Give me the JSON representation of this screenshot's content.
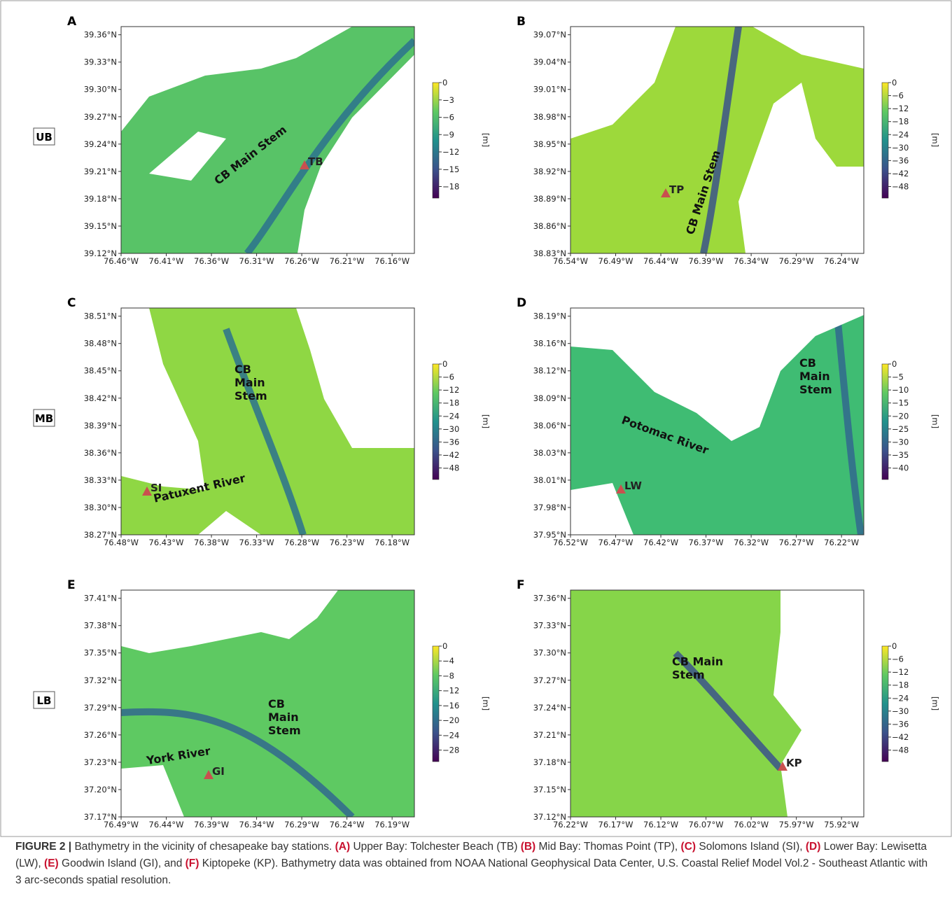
{
  "panels": [
    {
      "letter": "A",
      "region": "UB",
      "station": "TB",
      "xticks": [
        "76.46°W",
        "76.41°W",
        "76.36°W",
        "76.31°W",
        "76.26°W",
        "76.21°W",
        "76.16°W"
      ],
      "yticks": [
        "39.12°N",
        "39.15°N",
        "39.18°N",
        "39.21°N",
        "39.24°N",
        "39.27°N",
        "39.30°N",
        "39.33°N",
        "39.36°N"
      ],
      "colorbar_ticks": [
        "0",
        "−3",
        "−6",
        "−9",
        "−12",
        "−15",
        "−18"
      ],
      "colorbar_label": "[m]",
      "annotations": [
        [
          "CB Main Stem"
        ]
      ]
    },
    {
      "letter": "B",
      "station": "TP",
      "xticks": [
        "76.54°W",
        "76.49°W",
        "76.44°W",
        "76.39°W",
        "76.34°W",
        "76.29°W",
        "76.24°W"
      ],
      "yticks": [
        "38.83°N",
        "38.86°N",
        "38.89°N",
        "38.92°N",
        "38.95°N",
        "38.98°N",
        "39.01°N",
        "39.04°N",
        "39.07°N"
      ],
      "colorbar_ticks": [
        "0",
        "−6",
        "−12",
        "−18",
        "−24",
        "−30",
        "−36",
        "−42",
        "−48"
      ],
      "colorbar_label": "[m]",
      "annotations": [
        [
          "CB Main Stem"
        ]
      ]
    },
    {
      "letter": "C",
      "region": "MB",
      "station": "SI",
      "xticks": [
        "76.48°W",
        "76.43°W",
        "76.38°W",
        "76.33°W",
        "76.28°W",
        "76.23°W",
        "76.18°W"
      ],
      "yticks": [
        "38.27°N",
        "38.30°N",
        "38.33°N",
        "38.36°N",
        "38.39°N",
        "38.42°N",
        "38.45°N",
        "38.48°N",
        "38.51°N"
      ],
      "colorbar_ticks": [
        "0",
        "−6",
        "−12",
        "−18",
        "−24",
        "−30",
        "−36",
        "−42",
        "−48"
      ],
      "colorbar_label": "[m]",
      "annotations": [
        [
          "CB",
          "Main",
          "Stem"
        ],
        [
          "Patuxent River"
        ]
      ]
    },
    {
      "letter": "D",
      "station": "LW",
      "xticks": [
        "76.52°W",
        "76.47°W",
        "76.42°W",
        "76.37°W",
        "76.32°W",
        "76.27°W",
        "76.22°W"
      ],
      "yticks": [
        "37.95°N",
        "37.98°N",
        "38.01°N",
        "38.03°N",
        "38.06°N",
        "38.09°N",
        "38.12°N",
        "38.16°N",
        "38.19°N"
      ],
      "colorbar_ticks": [
        "0",
        "−5",
        "−10",
        "−15",
        "−20",
        "−25",
        "−30",
        "−35",
        "−40"
      ],
      "colorbar_label": "[m]",
      "annotations": [
        [
          "CB",
          "Main",
          "Stem"
        ],
        [
          "Potomac River"
        ]
      ]
    },
    {
      "letter": "E",
      "region": "LB",
      "station": "GI",
      "xticks": [
        "76.49°W",
        "76.44°W",
        "76.39°W",
        "76.34°W",
        "76.29°W",
        "76.24°W",
        "76.19°W"
      ],
      "yticks": [
        "37.17°N",
        "37.20°N",
        "37.23°N",
        "37.26°N",
        "37.29°N",
        "37.32°N",
        "37.35°N",
        "37.38°N",
        "37.41°N"
      ],
      "colorbar_ticks": [
        "0",
        "−4",
        "−8",
        "−12",
        "−16",
        "−20",
        "−24",
        "−28"
      ],
      "colorbar_label": "[m]",
      "annotations": [
        [
          "York River"
        ],
        [
          "CB",
          "Main",
          "Stem"
        ]
      ]
    },
    {
      "letter": "F",
      "station": "KP",
      "xticks": [
        "76.22°W",
        "76.17°W",
        "76.12°W",
        "76.07°W",
        "76.02°W",
        "75.97°W",
        "75.92°W"
      ],
      "yticks": [
        "37.12°N",
        "37.15°N",
        "37.18°N",
        "37.21°N",
        "37.24°N",
        "37.27°N",
        "37.30°N",
        "37.33°N",
        "37.36°N"
      ],
      "colorbar_ticks": [
        "0",
        "−6",
        "−12",
        "−18",
        "−24",
        "−30",
        "−36",
        "−42",
        "−48"
      ],
      "colorbar_label": "[m]",
      "annotations": [
        [
          "CB Main",
          "Stem"
        ]
      ]
    }
  ],
  "caption": [
    {
      "text": "FIGURE 2 |",
      "bold": true
    },
    {
      "text": " Bathymetry in the vicinity of chesapeake bay stations. "
    },
    {
      "text": "(A)",
      "bold": true
    },
    {
      "text": " Upper Bay: Tolchester Beach (TB) "
    },
    {
      "text": "(B)",
      "bold": true
    },
    {
      "text": " Mid Bay: Thomas Point (TP), "
    },
    {
      "text": "(C)",
      "bold": true
    },
    {
      "text": " Solomons Island (SI), "
    },
    {
      "text": "(D)",
      "bold": true
    },
    {
      "text": " Lower Bay: Lewisetta (LW), "
    },
    {
      "text": "(E)",
      "bold": true
    },
    {
      "text": " Goodwin Island (GI), and "
    },
    {
      "text": "(F)",
      "bold": true
    },
    {
      "text": " Kiptopeke (KP). Bathymetry data was obtained from NOAA National Geophysical Data Center, U.S. Coastal Relief Model Vol.2 - Southeast Atlantic with 3 arc-seconds spatial resolution."
    }
  ]
}
